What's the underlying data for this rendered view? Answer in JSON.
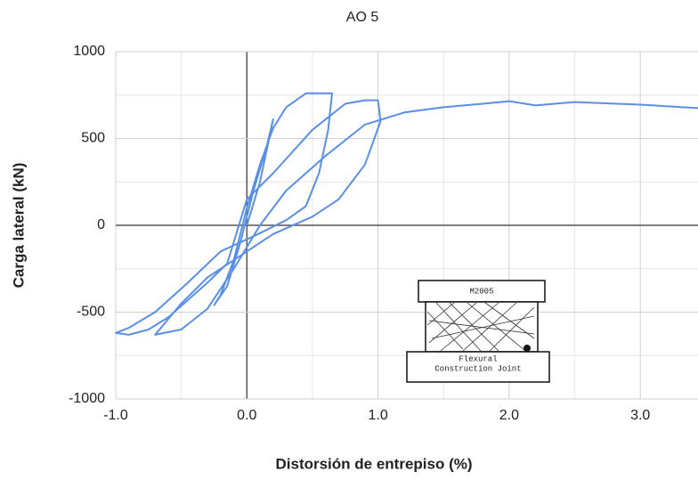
{
  "chart_data": {
    "type": "line",
    "title": "AO 5",
    "x_label": "Distorsión de entrepiso (%)",
    "y_label": "Carga lateral (kN)",
    "xlim": [
      -1.0,
      3.44
    ],
    "ylim": [
      -1000,
      1000
    ],
    "xticks": [
      {
        "value": -1,
        "label": "-1.0"
      },
      {
        "value": 0,
        "label": "0.0"
      },
      {
        "value": 1,
        "label": "1.0"
      },
      {
        "value": 2,
        "label": "2.0"
      },
      {
        "value": 3,
        "label": "3.0"
      }
    ],
    "yticks": [
      -1000,
      -500,
      0,
      500,
      1000
    ],
    "grid": true,
    "series": [
      {
        "color": "#5a8fe6",
        "x": [
          0,
          0.1,
          0.2,
          0.15,
          0.05,
          -0.05,
          -0.15,
          -0.25,
          -0.2,
          -0.1,
          0,
          0.1,
          0.2,
          0.3,
          0.45,
          0.65,
          0.62,
          0.55,
          0.45,
          0.3,
          0.06,
          -0.2,
          -0.45,
          -0.7,
          -0.9,
          -1.0,
          -0.9,
          -0.75,
          -0.6,
          -0.45,
          -0.3,
          -0.15,
          0,
          0.2,
          0.5,
          0.75,
          0.9,
          1.0,
          1.02,
          0.9,
          0.7,
          0.5,
          0.2,
          0,
          -0.3,
          -0.5,
          -0.7,
          -0.5,
          -0.3,
          -0.1,
          0.1,
          0.3,
          0.6,
          0.9,
          1.2,
          1.5,
          1.8,
          2.0,
          2.2,
          2.5,
          3.0,
          3.44
        ],
        "y": [
          0,
          250,
          610,
          450,
          200,
          -100,
          -350,
          -460,
          -400,
          -200,
          100,
          350,
          560,
          680,
          760,
          760,
          550,
          300,
          110,
          30,
          -60,
          -150,
          -330,
          -500,
          -590,
          -620,
          -630,
          -600,
          -530,
          -430,
          -330,
          -220,
          150,
          300,
          550,
          700,
          720,
          720,
          600,
          350,
          150,
          50,
          -50,
          -150,
          -300,
          -450,
          -630,
          -600,
          -480,
          -250,
          0,
          200,
          400,
          580,
          650,
          680,
          700,
          715,
          690,
          710,
          695,
          675
        ]
      }
    ]
  },
  "inset": {
    "label": "M2005",
    "caption": [
      "Flexural",
      "Construction Joint"
    ]
  }
}
